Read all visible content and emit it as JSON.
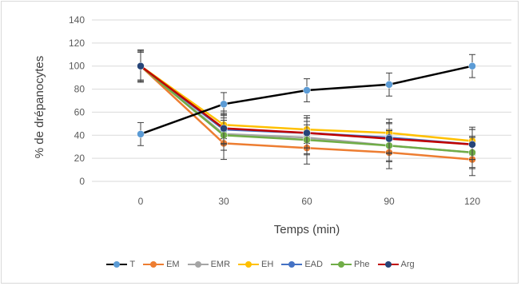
{
  "chart_data": {
    "type": "line",
    "title": "",
    "xlabel": "Temps (min)",
    "ylabel": "% de drépanocytes",
    "x": [
      0,
      30,
      60,
      90,
      120
    ],
    "x_ticks": [
      "0",
      "30",
      "60",
      "90",
      "120"
    ],
    "y_ticks": [
      "0",
      "20",
      "40",
      "60",
      "80",
      "100",
      "120",
      "140"
    ],
    "ylim": [
      0,
      140
    ],
    "grid": true,
    "legend_position": "bottom",
    "series": [
      {
        "name": "T",
        "color": "#000000",
        "marker_color": "#5b9bd5",
        "values": [
          41,
          67,
          79,
          84,
          100
        ],
        "error": [
          10,
          10,
          10,
          10,
          10
        ]
      },
      {
        "name": "EM",
        "color": "#ed7d31",
        "marker_color": "#ed7d31",
        "values": [
          100,
          33,
          29,
          25,
          19
        ],
        "error": [
          14,
          14,
          14,
          14,
          14
        ]
      },
      {
        "name": "EMR",
        "color": "#a5a5a5",
        "marker_color": "#a5a5a5",
        "values": [
          100,
          41,
          38,
          31,
          25
        ],
        "error": [
          14,
          14,
          14,
          14,
          14
        ]
      },
      {
        "name": "EH",
        "color": "#ffc000",
        "marker_color": "#ffc000",
        "values": [
          100,
          49,
          45,
          42,
          35
        ],
        "error": [
          12,
          12,
          12,
          12,
          12
        ]
      },
      {
        "name": "EAD",
        "color": "#4472c4",
        "marker_color": "#4472c4",
        "values": [
          100,
          45,
          42,
          38,
          32
        ],
        "error": [
          13,
          13,
          13,
          13,
          13
        ]
      },
      {
        "name": "Phe",
        "color": "#70ad47",
        "marker_color": "#70ad47",
        "values": [
          100,
          40,
          36,
          31,
          25
        ],
        "error": [
          13,
          13,
          13,
          13,
          13
        ]
      },
      {
        "name": "Arg",
        "color": "#c00000",
        "marker_color": "#264478",
        "values": [
          100,
          46,
          42,
          37,
          32
        ],
        "error": [
          13,
          13,
          13,
          13,
          13
        ]
      }
    ]
  }
}
